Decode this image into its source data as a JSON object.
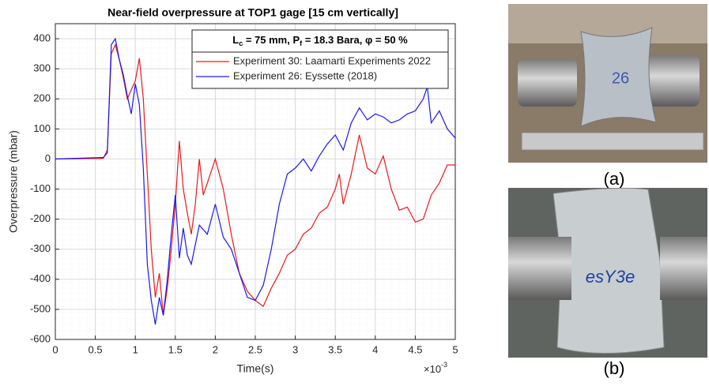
{
  "chart_data": {
    "type": "line",
    "title": "Near-field overpressure at TOP1 gage [15 cm vertically]",
    "y_label": "Overpressure (mbar)",
    "x_label": "Time(s)",
    "x_multiplier": [
      "×10",
      "-3"
    ],
    "legend_header": [
      "L",
      "c",
      " = 75 mm, P",
      "f",
      " = 18.3 Bara,  φ = 50 %"
    ],
    "xlim": [
      0,
      0.005
    ],
    "xticks": [
      0,
      {
        "value": 0.0005,
        "label": "0.5"
      },
      {
        "value": 0.001,
        "label": "1"
      },
      {
        "value": 0.0015,
        "label": "1.5"
      },
      {
        "value": 0.002,
        "label": "2"
      },
      {
        "value": 0.0025,
        "label": "2.5"
      },
      {
        "value": 0.003,
        "label": "3"
      },
      {
        "value": 0.0035,
        "label": "3.5"
      },
      {
        "value": 0.004,
        "label": "4"
      },
      {
        "value": 0.0045,
        "label": "4.5"
      },
      {
        "value": 0.005,
        "label": "5"
      }
    ],
    "ylim": [
      -600,
      450
    ],
    "yticks": [
      -600,
      -500,
      -400,
      -300,
      -200,
      -100,
      0,
      100,
      200,
      300,
      400
    ],
    "grid": true,
    "legend": "top-right",
    "series": [
      {
        "name": "Experiment 30: Laamarti Experiments 2022",
        "color": "#e8191c",
        "x": [
          0,
          0.0006,
          0.00065,
          0.0007,
          0.00075,
          0.0008,
          0.00085,
          0.0009,
          0.00095,
          0.001,
          0.00105,
          0.0011,
          0.00115,
          0.0012,
          0.00125,
          0.0013,
          0.00135,
          0.0014,
          0.00145,
          0.0015,
          0.00155,
          0.0016,
          0.00165,
          0.0017,
          0.00175,
          0.0018,
          0.00185,
          0.0019,
          0.002,
          0.0021,
          0.0022,
          0.0023,
          0.0024,
          0.0025,
          0.0026,
          0.0027,
          0.0028,
          0.0029,
          0.003,
          0.0031,
          0.0032,
          0.0033,
          0.0034,
          0.0035,
          0.00355,
          0.0036,
          0.0037,
          0.0038,
          0.0039,
          0.004,
          0.0041,
          0.0042,
          0.0043,
          0.0044,
          0.0045,
          0.0046,
          0.0047,
          0.0048,
          0.0049,
          0.005
        ],
        "values": [
          0,
          2,
          30,
          350,
          380,
          330,
          270,
          200,
          230,
          260,
          335,
          200,
          -50,
          -300,
          -460,
          -380,
          -520,
          -430,
          -300,
          -150,
          60,
          -100,
          -180,
          -250,
          -150,
          0,
          -120,
          -80,
          0,
          -100,
          -250,
          -380,
          -440,
          -470,
          -490,
          -430,
          -380,
          -320,
          -300,
          -250,
          -230,
          -180,
          -160,
          -100,
          -50,
          -150,
          -50,
          80,
          -30,
          -50,
          10,
          -100,
          -170,
          -160,
          -210,
          -200,
          -120,
          -80,
          -20,
          -20
        ]
      },
      {
        "name": "Experiment 26: Eyssette (2018)",
        "color": "#1a1aef",
        "x": [
          0,
          0.0006,
          0.00065,
          0.0007,
          0.00075,
          0.0008,
          0.00085,
          0.0009,
          0.00095,
          0.001,
          0.00105,
          0.0011,
          0.00115,
          0.0012,
          0.00125,
          0.0013,
          0.00135,
          0.0014,
          0.00145,
          0.0015,
          0.00155,
          0.0016,
          0.00165,
          0.0017,
          0.0018,
          0.0019,
          0.002,
          0.0021,
          0.0022,
          0.0023,
          0.0024,
          0.0025,
          0.0026,
          0.0027,
          0.0028,
          0.0029,
          0.003,
          0.0031,
          0.0032,
          0.0033,
          0.0034,
          0.0035,
          0.0036,
          0.0037,
          0.0038,
          0.0039,
          0.004,
          0.0041,
          0.0042,
          0.0043,
          0.0044,
          0.0045,
          0.0046,
          0.00465,
          0.0047,
          0.0048,
          0.0049,
          0.005
        ],
        "values": [
          0,
          5,
          20,
          380,
          400,
          330,
          280,
          210,
          150,
          250,
          180,
          -30,
          -350,
          -470,
          -550,
          -460,
          -520,
          -400,
          -250,
          -120,
          -330,
          -230,
          -320,
          -350,
          -220,
          -250,
          -150,
          -260,
          -300,
          -380,
          -460,
          -470,
          -420,
          -300,
          -150,
          -50,
          -30,
          0,
          -40,
          10,
          50,
          80,
          30,
          120,
          170,
          130,
          150,
          140,
          120,
          130,
          150,
          160,
          200,
          240,
          120,
          160,
          100,
          70
        ]
      }
    ]
  },
  "photos": {
    "labels": [
      "(a)",
      "(b)"
    ]
  }
}
